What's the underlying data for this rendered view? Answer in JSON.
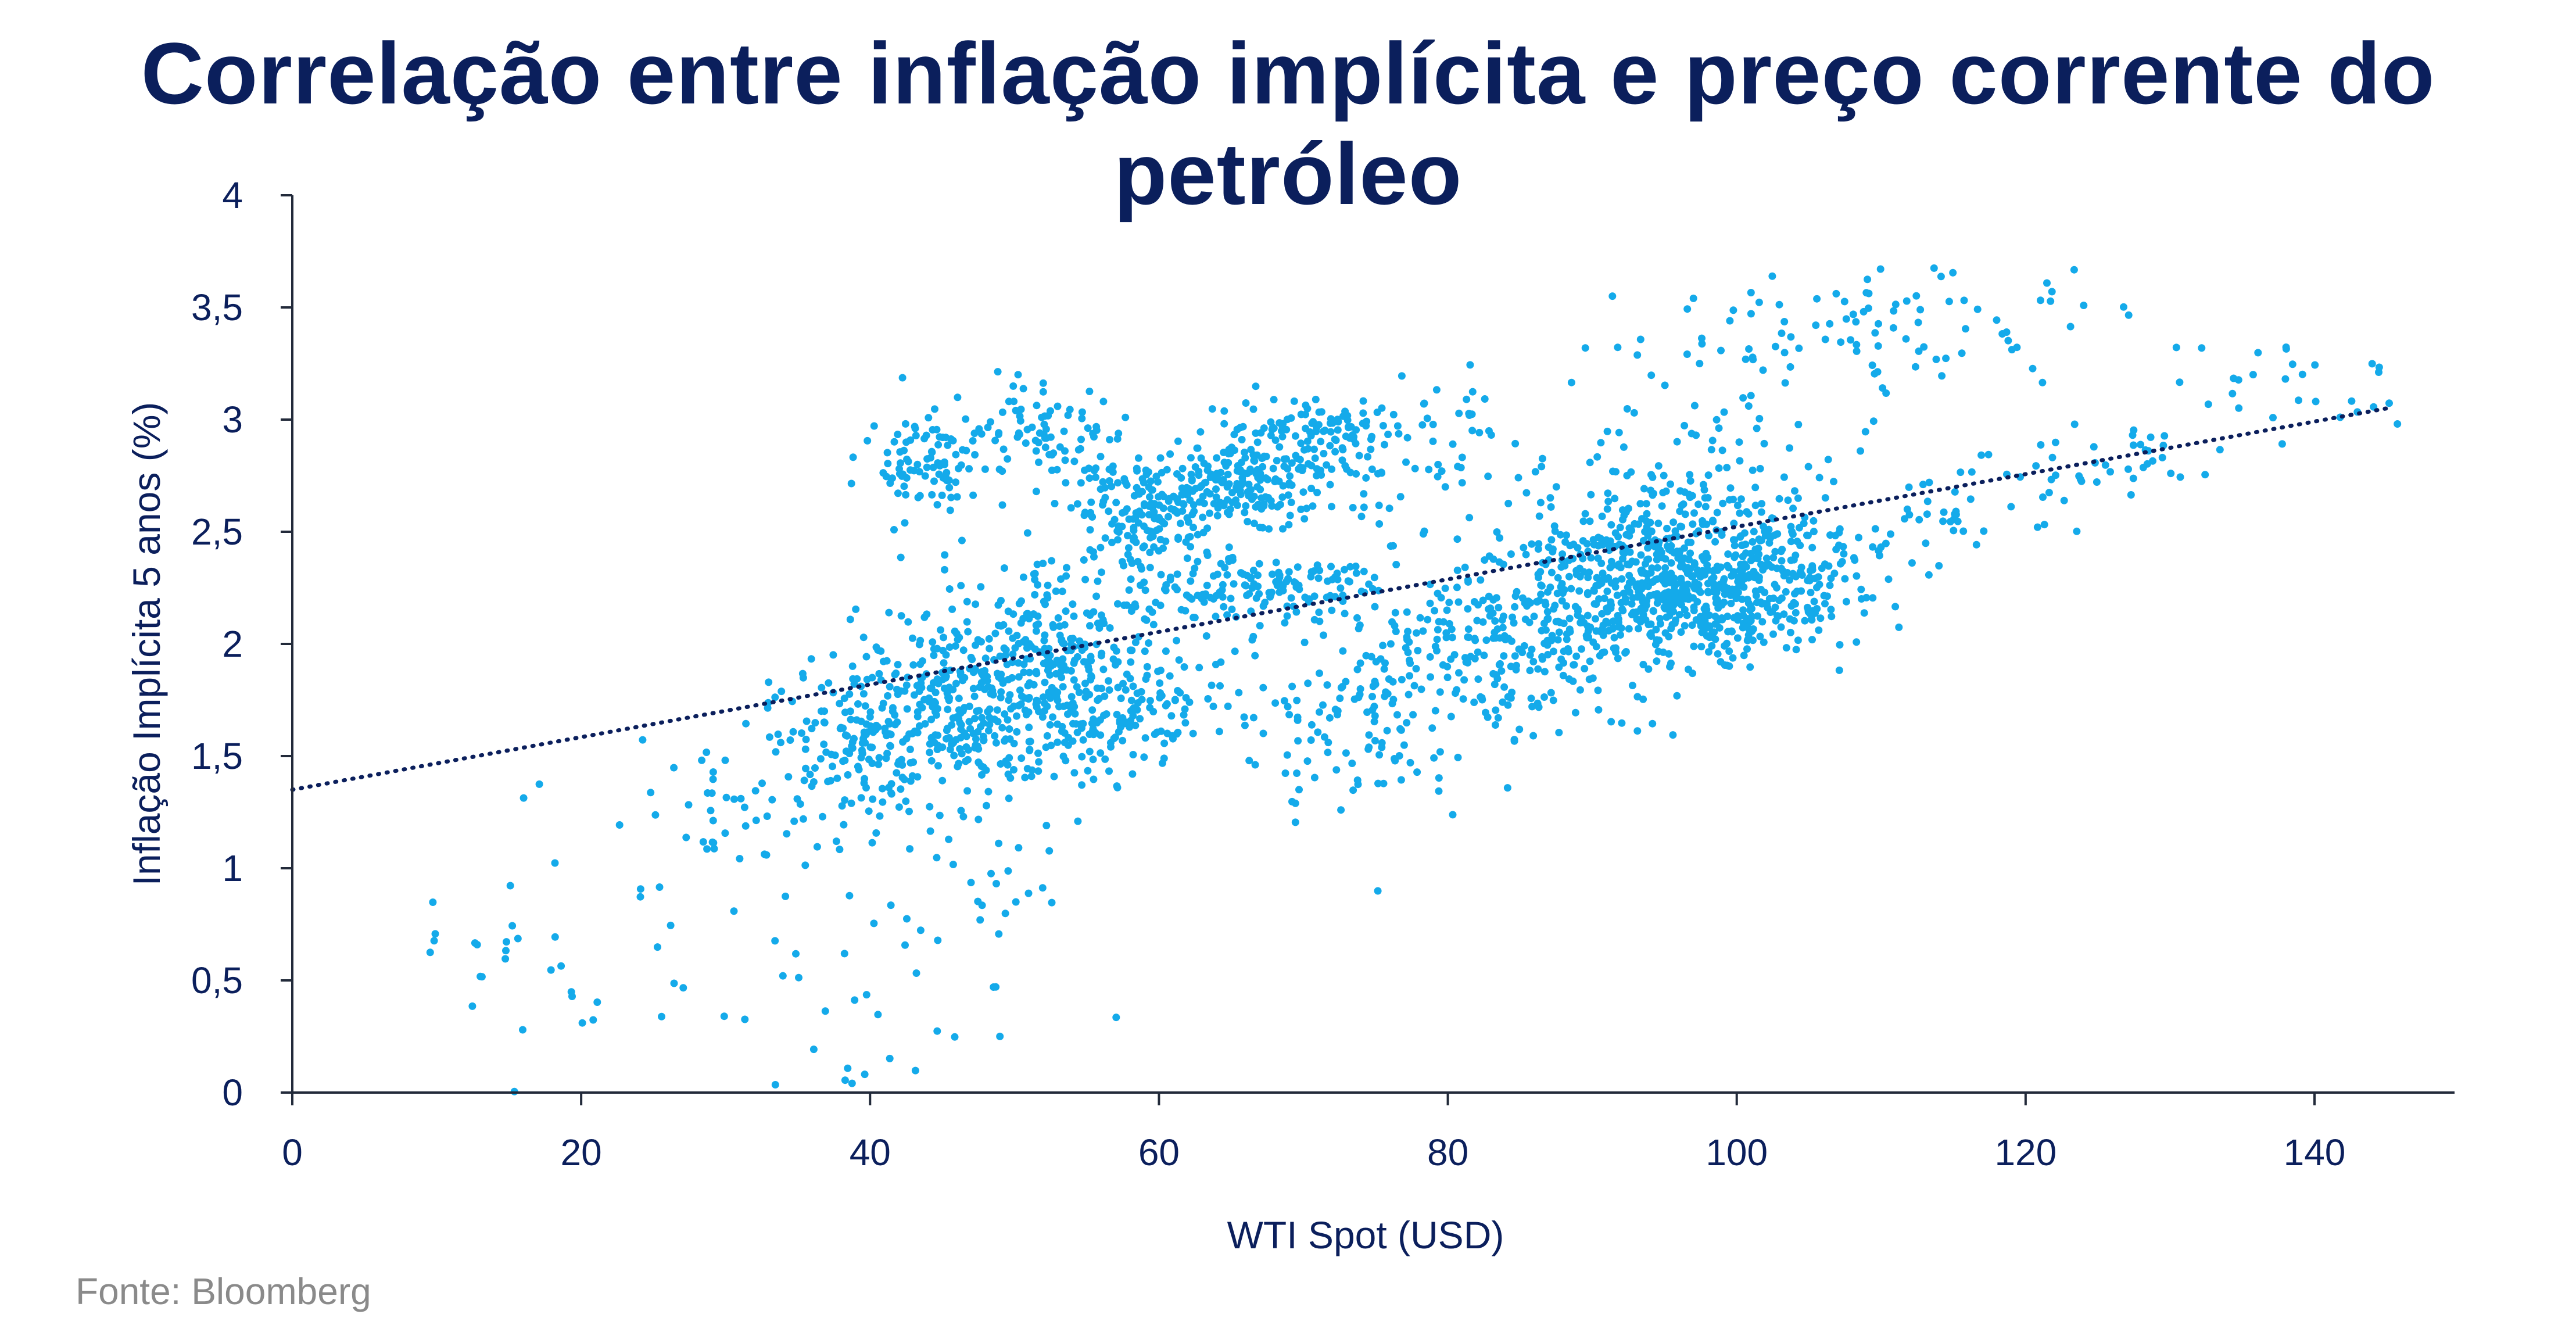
{
  "chart_data": {
    "type": "scatter",
    "title": "Correlação entre inflação implícita e preço corrente do petróleo",
    "xlabel": "WTI Spot (USD)",
    "ylabel": "Inflação Implícita 5 anos (%)",
    "xlim": [
      0,
      150
    ],
    "ylim": [
      0,
      4
    ],
    "x_ticks": [
      "0",
      "20",
      "40",
      "60",
      "80",
      "100",
      "120",
      "140"
    ],
    "x_tick_values": [
      0,
      20,
      40,
      60,
      80,
      100,
      120,
      140
    ],
    "y_ticks": [
      "0",
      "0,5",
      "1",
      "1,5",
      "2",
      "2,5",
      "3",
      "3,5",
      "4"
    ],
    "y_tick_values": [
      0,
      0.5,
      1,
      1.5,
      2,
      2.5,
      3,
      3.5,
      4
    ],
    "grid": false,
    "legend": "none",
    "point_color": "#14aaea",
    "trendline": {
      "style": "dotted",
      "color": "#0b1f5c",
      "x": [
        0,
        145
      ],
      "y": [
        1.35,
        3.05
      ]
    },
    "clusters": [
      {
        "cx": 12,
        "cy": 0.75,
        "sx": 3,
        "sy": 0.12,
        "n": 12
      },
      {
        "cx": 22,
        "cy": 0.6,
        "sx": 4,
        "sy": 0.25,
        "n": 22
      },
      {
        "cx": 30,
        "cy": 1.25,
        "sx": 4,
        "sy": 0.15,
        "n": 40
      },
      {
        "cx": 38,
        "cy": 0.35,
        "sx": 6,
        "sy": 0.25,
        "n": 25
      },
      {
        "cx": 44,
        "cy": 2.8,
        "sx": 2,
        "sy": 0.12,
        "n": 90
      },
      {
        "cx": 52,
        "cy": 2.95,
        "sx": 3,
        "sy": 0.12,
        "n": 90
      },
      {
        "cx": 40,
        "cy": 1.6,
        "sx": 4,
        "sy": 0.2,
        "n": 180
      },
      {
        "cx": 47,
        "cy": 1.75,
        "sx": 4,
        "sy": 0.22,
        "n": 260
      },
      {
        "cx": 53,
        "cy": 2.0,
        "sx": 4,
        "sy": 0.22,
        "n": 220
      },
      {
        "cx": 57,
        "cy": 1.7,
        "sx": 4,
        "sy": 0.15,
        "n": 160
      },
      {
        "cx": 45,
        "cy": 1.0,
        "sx": 7,
        "sy": 0.3,
        "n": 50
      },
      {
        "cx": 60,
        "cy": 2.6,
        "sx": 3,
        "sy": 0.12,
        "n": 170
      },
      {
        "cx": 66,
        "cy": 2.75,
        "sx": 3,
        "sy": 0.12,
        "n": 190
      },
      {
        "cx": 71,
        "cy": 2.95,
        "sx": 3,
        "sy": 0.08,
        "n": 90
      },
      {
        "cx": 67,
        "cy": 2.25,
        "sx": 5,
        "sy": 0.08,
        "n": 150
      },
      {
        "cx": 73,
        "cy": 1.7,
        "sx": 4,
        "sy": 0.25,
        "n": 120
      },
      {
        "cx": 78,
        "cy": 2.8,
        "sx": 5,
        "sy": 0.25,
        "n": 70
      },
      {
        "cx": 82,
        "cy": 1.9,
        "sx": 4,
        "sy": 0.2,
        "n": 130
      },
      {
        "cx": 88,
        "cy": 2.1,
        "sx": 4,
        "sy": 0.2,
        "n": 200
      },
      {
        "cx": 94,
        "cy": 2.4,
        "sx": 4,
        "sy": 0.15,
        "n": 260
      },
      {
        "cx": 97,
        "cy": 2.15,
        "sx": 4,
        "sy": 0.12,
        "n": 220
      },
      {
        "cx": 103,
        "cy": 2.3,
        "sx": 4,
        "sy": 0.15,
        "n": 240
      },
      {
        "cx": 98,
        "cy": 2.7,
        "sx": 5,
        "sy": 0.18,
        "n": 90
      },
      {
        "cx": 104,
        "cy": 3.4,
        "sx": 6,
        "sy": 0.12,
        "n": 60
      },
      {
        "cx": 115,
        "cy": 3.4,
        "sx": 5,
        "sy": 0.18,
        "n": 40
      },
      {
        "cx": 115,
        "cy": 2.6,
        "sx": 3,
        "sy": 0.1,
        "n": 30
      },
      {
        "cx": 125,
        "cy": 2.8,
        "sx": 4,
        "sy": 0.1,
        "n": 40
      },
      {
        "cx": 138,
        "cy": 3.15,
        "sx": 5,
        "sy": 0.1,
        "n": 30
      }
    ]
  },
  "source_note": "Fonte: Bloomberg"
}
